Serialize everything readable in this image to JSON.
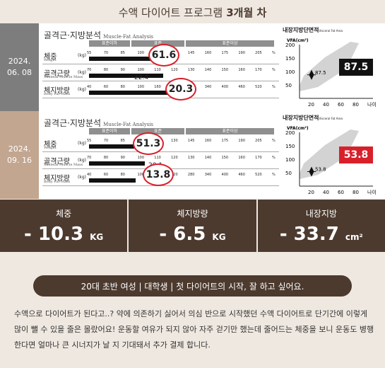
{
  "header": {
    "title_prefix": "수액 다이어트 프로그램",
    "title_bold": "3개월 차"
  },
  "analysis_title": "골격근·지방분석",
  "analysis_subtitle": "Muscle-Fat Analysis",
  "bands": {
    "low": "표준이하",
    "normal": "표준",
    "high": "표준이상"
  },
  "rows": [
    {
      "label": "체중",
      "sub": "Weight",
      "unit": "(kg)",
      "ticks": [
        "55",
        "70",
        "85",
        "100",
        "115",
        "130",
        "145",
        "160",
        "175",
        "190",
        "205",
        "%"
      ]
    },
    {
      "label": "골격근량",
      "sub": "Skeletal Muscle Mass",
      "unit": "(kg)",
      "ticks": [
        "70",
        "80",
        "90",
        "100",
        "110",
        "120",
        "130",
        "140",
        "150",
        "160",
        "170",
        "%"
      ]
    },
    {
      "label": "체지방량",
      "sub": "Body Fat Mass",
      "unit": "(kg)",
      "ticks": [
        "40",
        "60",
        "80",
        "100",
        "160",
        "220",
        "280",
        "340",
        "400",
        "460",
        "520",
        "%"
      ]
    }
  ],
  "before": {
    "date_year": "2024.",
    "date_md": "06. 08",
    "weight": "61.6",
    "muscle": "22.4",
    "fat": "20.3",
    "vfa": "87.5",
    "vfa_small": "87.5",
    "vfa_level": 87.5,
    "vfa_color": "#111111",
    "bars": {
      "weight": 0.42,
      "muscle": 0.4,
      "fat": 0.43
    }
  },
  "after": {
    "date_year": "2024.",
    "date_md": "09. 16",
    "weight": "51.3",
    "muscle": "20.1",
    "fat": "13.8",
    "vfa": "53.8",
    "vfa_small": "53.8",
    "vfa_level": 53.8,
    "vfa_color": "#d8202a",
    "bars": {
      "weight": 0.25,
      "muscle": 0.3,
      "fat": 0.25
    }
  },
  "vfa": {
    "title": "내장지방단면적",
    "title_small": "Visceral Fat Area",
    "ylabel": "VFA(cm²)",
    "yticks": [
      "200",
      "150",
      "100",
      "50"
    ],
    "xticks": [
      "20",
      "40",
      "60",
      "80",
      "나이"
    ]
  },
  "stats": [
    {
      "label": "체중",
      "value": "- 10.3",
      "unit": "KG"
    },
    {
      "label": "체지방량",
      "value": "- 6.5",
      "unit": "KG"
    },
    {
      "label": "내장지방",
      "value": "- 33.7",
      "unit": "cm²"
    }
  ],
  "tagline": "20대 초반 여성 | 대학생 | 첫 다이어트의 시작, 잘 하고 싶어요.",
  "story": "수액으로 다이어트가 된다고..? 약에 의존하기 싫어서 의심 반으로 시작했던 수액 다이어트로 단기간에 이렇게 많이 뺄 수 있을 줄은 몰랐어요! 운동할 여유가 되지 않아 자주 걷기만 했는데 줄어드는 체중을 보니 운동도 병행한다면 얼마나 큰 시너지가 날 지 기대돼서 추가 결제 합니다."
}
